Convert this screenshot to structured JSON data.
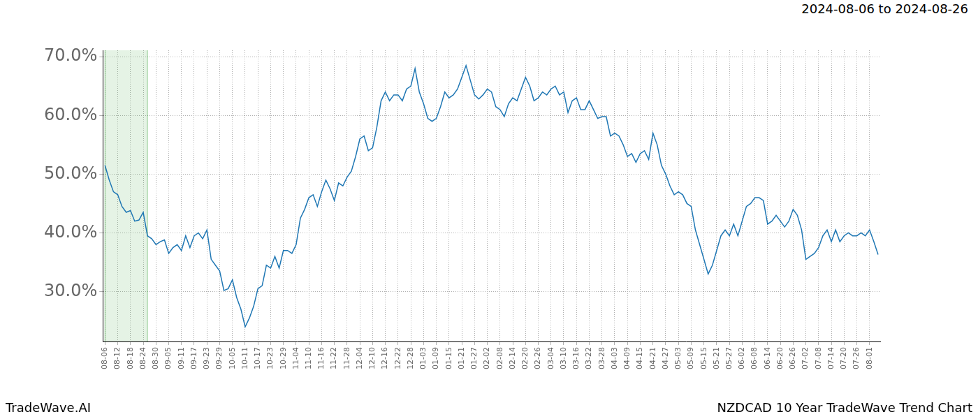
{
  "chart_data": {
    "type": "line",
    "title": "2024-08-06 to 2024-08-26",
    "source": "TradeWave.AI",
    "caption": "NZDCAD 10 Year TradeWave Trend Chart",
    "categories": [
      "08-06",
      null,
      null,
      "08-12",
      null,
      null,
      "08-18",
      null,
      null,
      "08-24",
      null,
      null,
      "08-30",
      null,
      null,
      "09-05",
      null,
      null,
      "09-11",
      null,
      null,
      "09-17",
      null,
      null,
      "09-23",
      null,
      null,
      "09-29",
      null,
      null,
      "10-05",
      null,
      null,
      "10-11",
      null,
      null,
      "10-17",
      null,
      null,
      "10-23",
      null,
      null,
      "10-29",
      null,
      null,
      "11-04",
      null,
      null,
      "11-10",
      null,
      null,
      "11-16",
      null,
      null,
      "11-22",
      null,
      null,
      "11-28",
      null,
      null,
      "12-04",
      null,
      null,
      "12-10",
      null,
      null,
      "12-16",
      null,
      null,
      "12-22",
      null,
      null,
      "12-28",
      null,
      null,
      "01-03",
      null,
      null,
      "01-09",
      null,
      null,
      "01-15",
      null,
      null,
      "01-21",
      null,
      null,
      "01-27",
      null,
      null,
      "02-02",
      null,
      null,
      "02-08",
      null,
      null,
      "02-14",
      null,
      null,
      "02-20",
      null,
      null,
      "02-26",
      null,
      null,
      "03-04",
      null,
      null,
      "03-10",
      null,
      null,
      "03-16",
      null,
      null,
      "03-22",
      null,
      null,
      "03-28",
      null,
      null,
      "04-03",
      null,
      null,
      "04-09",
      null,
      null,
      "04-15",
      null,
      null,
      "04-21",
      null,
      null,
      "04-27",
      null,
      null,
      "05-03",
      null,
      null,
      "05-09",
      null,
      null,
      "05-15",
      null,
      null,
      "05-21",
      null,
      null,
      "05-27",
      null,
      null,
      "06-02",
      null,
      null,
      "06-08",
      null,
      null,
      "06-14",
      null,
      null,
      "06-20",
      null,
      null,
      "06-26",
      null,
      null,
      "07-02",
      null,
      null,
      "07-08",
      null,
      null,
      "07-14",
      null,
      null,
      "07-20",
      null,
      null,
      "07-26",
      null,
      null,
      "08-01",
      null,
      null
    ],
    "values": [
      51.5,
      49,
      47,
      46.5,
      44.5,
      43.5,
      43.8,
      42,
      42.2,
      43.5,
      39.5,
      39,
      38,
      38.5,
      38.8,
      36.5,
      37.5,
      38,
      37,
      39.5,
      37.5,
      39.5,
      40,
      39,
      40.5,
      35.5,
      34.5,
      33.5,
      30.2,
      30.5,
      32,
      29,
      27,
      24,
      25.5,
      27.5,
      30.5,
      31,
      34.5,
      34,
      36,
      34,
      37,
      37,
      36.5,
      38,
      42.5,
      44,
      46,
      46.5,
      44.5,
      47,
      49,
      47.5,
      45.5,
      48.5,
      48,
      49.5,
      50.5,
      53,
      56,
      56.5,
      54,
      54.5,
      58,
      62.5,
      64,
      62.5,
      63.5,
      63.5,
      62.5,
      64.5,
      65,
      68,
      64,
      62,
      59.5,
      59,
      59.5,
      61.5,
      64,
      63,
      63.5,
      64.5,
      66.5,
      68.5,
      66,
      63.5,
      62.8,
      63.5,
      64.5,
      64,
      61.5,
      61,
      59.8,
      62,
      63,
      62.5,
      64.5,
      66.5,
      65,
      62.5,
      63,
      64,
      63.5,
      64.5,
      65,
      63.5,
      64,
      60.5,
      62.5,
      63,
      61,
      61,
      62.5,
      61,
      59.5,
      59.8,
      59.8,
      56.5,
      57,
      56.5,
      55,
      53,
      53.5,
      52,
      53.5,
      54,
      52.5,
      57,
      55,
      51.5,
      50,
      48,
      46.5,
      47,
      46.5,
      45,
      44.5,
      40.5,
      38,
      35.5,
      33,
      34.5,
      37,
      39.5,
      40.5,
      39.5,
      41.5,
      39.5,
      42,
      44.5,
      45,
      46,
      46,
      45.5,
      41.5,
      42,
      43,
      42,
      41,
      42,
      44,
      43,
      40.5,
      35.5,
      36,
      36.5,
      37.5,
      39.5,
      40.5,
      38.5,
      40.5,
      38.5,
      39.5,
      40,
      39.5,
      39.5,
      40,
      39.5,
      40.5,
      38.5,
      36.3
    ],
    "color": "#1f77b4",
    "ylim": [
      21.5,
      71.1
    ],
    "yticks": [
      {
        "value": 30,
        "label": "30.0%"
      },
      {
        "value": 40,
        "label": "40.0%"
      },
      {
        "value": 50,
        "label": "50.0%"
      },
      {
        "value": 60,
        "label": "60.0%"
      },
      {
        "value": 70,
        "label": "70.0%"
      }
    ],
    "grid": true,
    "shade": {
      "from": "2024-08-06",
      "to": "2024-08-26",
      "color": "#2ca02c"
    }
  }
}
